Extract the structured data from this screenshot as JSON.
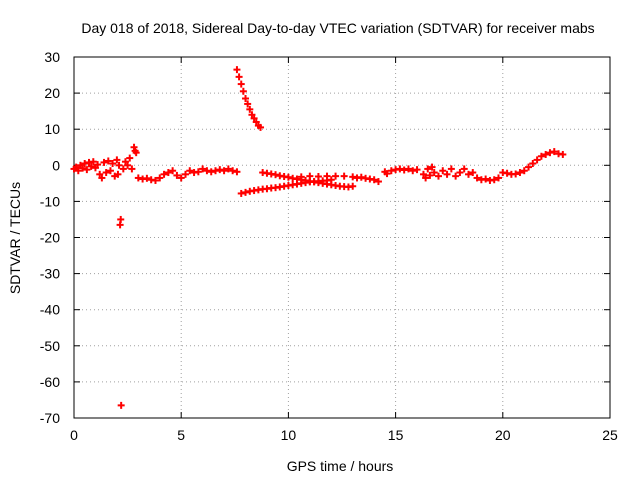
{
  "chart_data": {
    "type": "scatter",
    "title": "Day 018 of 2018, Sidereal Day-to-day VTEC variation (SDTVAR) for receiver mabs",
    "xlabel": "GPS time / hours",
    "ylabel": "SDTVAR / TECUs",
    "xlim": [
      0,
      25
    ],
    "ylim": [
      -70,
      30
    ],
    "xticks": [
      0,
      5,
      10,
      15,
      20,
      25
    ],
    "yticks": [
      -70,
      -60,
      -50,
      -40,
      -30,
      -20,
      -10,
      0,
      10,
      20,
      30
    ],
    "grid": true,
    "marker": "+",
    "marker_color": "#ff0000",
    "series": [
      {
        "name": "SDTVAR",
        "points": [
          [
            0.0,
            -1.0
          ],
          [
            0.1,
            -0.5
          ],
          [
            0.2,
            -1.5
          ],
          [
            0.3,
            0.0
          ],
          [
            0.4,
            -0.8
          ],
          [
            0.5,
            0.5
          ],
          [
            0.6,
            -1.2
          ],
          [
            0.7,
            0.8
          ],
          [
            0.8,
            -0.3
          ],
          [
            0.9,
            1.0
          ],
          [
            1.0,
            -0.7
          ],
          [
            1.1,
            0.2
          ],
          [
            1.2,
            -2.5
          ],
          [
            1.3,
            -3.5
          ],
          [
            1.4,
            0.8
          ],
          [
            1.5,
            -2.0
          ],
          [
            1.6,
            1.2
          ],
          [
            1.7,
            -1.5
          ],
          [
            1.8,
            0.5
          ],
          [
            1.9,
            -3.0
          ],
          [
            2.0,
            1.5
          ],
          [
            2.05,
            -2.5
          ],
          [
            2.1,
            0.0
          ],
          [
            2.15,
            -16.5
          ],
          [
            2.18,
            -15.0
          ],
          [
            2.2,
            -66.5
          ],
          [
            2.3,
            -1.0
          ],
          [
            2.4,
            1.0
          ],
          [
            2.5,
            0.0
          ],
          [
            2.6,
            2.0
          ],
          [
            2.7,
            -1.0
          ],
          [
            2.8,
            5.0
          ],
          [
            2.85,
            4.0
          ],
          [
            2.9,
            3.5
          ],
          [
            3.0,
            -3.5
          ],
          [
            3.2,
            -3.8
          ],
          [
            3.4,
            -3.6
          ],
          [
            3.6,
            -4.0
          ],
          [
            3.8,
            -4.2
          ],
          [
            4.0,
            -3.5
          ],
          [
            4.2,
            -2.5
          ],
          [
            4.4,
            -2.0
          ],
          [
            4.6,
            -1.5
          ],
          [
            4.8,
            -2.8
          ],
          [
            5.0,
            -3.5
          ],
          [
            5.2,
            -2.5
          ],
          [
            5.4,
            -1.5
          ],
          [
            5.6,
            -2.0
          ],
          [
            5.8,
            -1.8
          ],
          [
            6.0,
            -1.0
          ],
          [
            6.2,
            -1.5
          ],
          [
            6.4,
            -1.8
          ],
          [
            6.6,
            -1.5
          ],
          [
            6.8,
            -1.2
          ],
          [
            7.0,
            -1.5
          ],
          [
            7.2,
            -1.0
          ],
          [
            7.4,
            -1.5
          ],
          [
            7.6,
            -1.8
          ],
          [
            7.6,
            26.5
          ],
          [
            7.7,
            24.5
          ],
          [
            7.8,
            22.5
          ],
          [
            7.9,
            20.5
          ],
          [
            8.0,
            18.5
          ],
          [
            8.1,
            17.0
          ],
          [
            8.2,
            15.5
          ],
          [
            8.3,
            14.0
          ],
          [
            8.4,
            13.0
          ],
          [
            8.5,
            12.0
          ],
          [
            8.6,
            11.0
          ],
          [
            8.7,
            10.5
          ],
          [
            7.8,
            -7.8
          ],
          [
            8.0,
            -7.5
          ],
          [
            8.2,
            -7.2
          ],
          [
            8.4,
            -7.0
          ],
          [
            8.6,
            -6.8
          ],
          [
            8.8,
            -6.6
          ],
          [
            9.0,
            -6.5
          ],
          [
            9.2,
            -6.3
          ],
          [
            9.4,
            -6.2
          ],
          [
            9.6,
            -6.0
          ],
          [
            9.8,
            -5.8
          ],
          [
            10.0,
            -5.6
          ],
          [
            10.2,
            -5.4
          ],
          [
            10.4,
            -5.2
          ],
          [
            10.6,
            -5.0
          ],
          [
            10.8,
            -4.8
          ],
          [
            11.0,
            -4.6
          ],
          [
            11.2,
            -4.5
          ],
          [
            11.4,
            -4.4
          ],
          [
            11.6,
            -4.3
          ],
          [
            11.8,
            -4.2
          ],
          [
            12.0,
            -4.0
          ],
          [
            8.8,
            -2.0
          ],
          [
            9.0,
            -2.2
          ],
          [
            9.2,
            -2.4
          ],
          [
            9.4,
            -2.6
          ],
          [
            9.6,
            -2.9
          ],
          [
            9.8,
            -3.1
          ],
          [
            10.0,
            -3.3
          ],
          [
            10.2,
            -3.6
          ],
          [
            10.4,
            -3.8
          ],
          [
            10.6,
            -4.0
          ],
          [
            10.8,
            -4.2
          ],
          [
            11.0,
            -4.4
          ],
          [
            11.2,
            -4.6
          ],
          [
            11.4,
            -4.8
          ],
          [
            11.6,
            -5.0
          ],
          [
            11.8,
            -5.2
          ],
          [
            12.0,
            -5.4
          ],
          [
            12.2,
            -5.6
          ],
          [
            12.4,
            -5.8
          ],
          [
            12.6,
            -5.9
          ],
          [
            12.8,
            -6.0
          ],
          [
            13.0,
            -5.8
          ],
          [
            10.6,
            -3.2
          ],
          [
            11.0,
            -3.0
          ],
          [
            11.4,
            -3.1
          ],
          [
            11.8,
            -3.0
          ],
          [
            12.2,
            -3.0
          ],
          [
            12.6,
            -3.0
          ],
          [
            13.0,
            -3.2
          ],
          [
            13.2,
            -3.5
          ],
          [
            13.4,
            -3.3
          ],
          [
            13.6,
            -3.6
          ],
          [
            13.8,
            -3.8
          ],
          [
            14.0,
            -4.0
          ],
          [
            14.2,
            -4.5
          ],
          [
            14.5,
            -1.8
          ],
          [
            14.6,
            -2.3
          ],
          [
            14.8,
            -1.5
          ],
          [
            15.0,
            -1.2
          ],
          [
            15.2,
            -1.0
          ],
          [
            15.4,
            -1.3
          ],
          [
            15.6,
            -1.0
          ],
          [
            15.8,
            -1.5
          ],
          [
            16.0,
            -1.2
          ],
          [
            16.3,
            -2.5
          ],
          [
            16.4,
            -3.5
          ],
          [
            16.5,
            -1.0
          ],
          [
            16.6,
            -2.8
          ],
          [
            16.7,
            -0.5
          ],
          [
            16.8,
            -2.0
          ],
          [
            17.0,
            -3.0
          ],
          [
            17.2,
            -1.5
          ],
          [
            17.4,
            -2.5
          ],
          [
            17.6,
            -1.0
          ],
          [
            17.8,
            -3.0
          ],
          [
            18.0,
            -2.0
          ],
          [
            18.2,
            -1.0
          ],
          [
            18.4,
            -2.5
          ],
          [
            18.6,
            -2.0
          ],
          [
            18.8,
            -3.5
          ],
          [
            19.0,
            -4.0
          ],
          [
            19.2,
            -3.8
          ],
          [
            19.4,
            -4.2
          ],
          [
            19.6,
            -4.0
          ],
          [
            19.8,
            -3.5
          ],
          [
            20.0,
            -2.0
          ],
          [
            20.2,
            -2.2
          ],
          [
            20.4,
            -2.5
          ],
          [
            20.6,
            -2.4
          ],
          [
            20.8,
            -2.0
          ],
          [
            21.0,
            -1.5
          ],
          [
            21.2,
            -0.5
          ],
          [
            21.4,
            0.5
          ],
          [
            21.6,
            1.5
          ],
          [
            21.8,
            2.5
          ],
          [
            22.0,
            3.0
          ],
          [
            22.2,
            3.5
          ],
          [
            22.4,
            3.8
          ],
          [
            22.6,
            3.2
          ],
          [
            22.8,
            3.0
          ]
        ]
      }
    ]
  }
}
